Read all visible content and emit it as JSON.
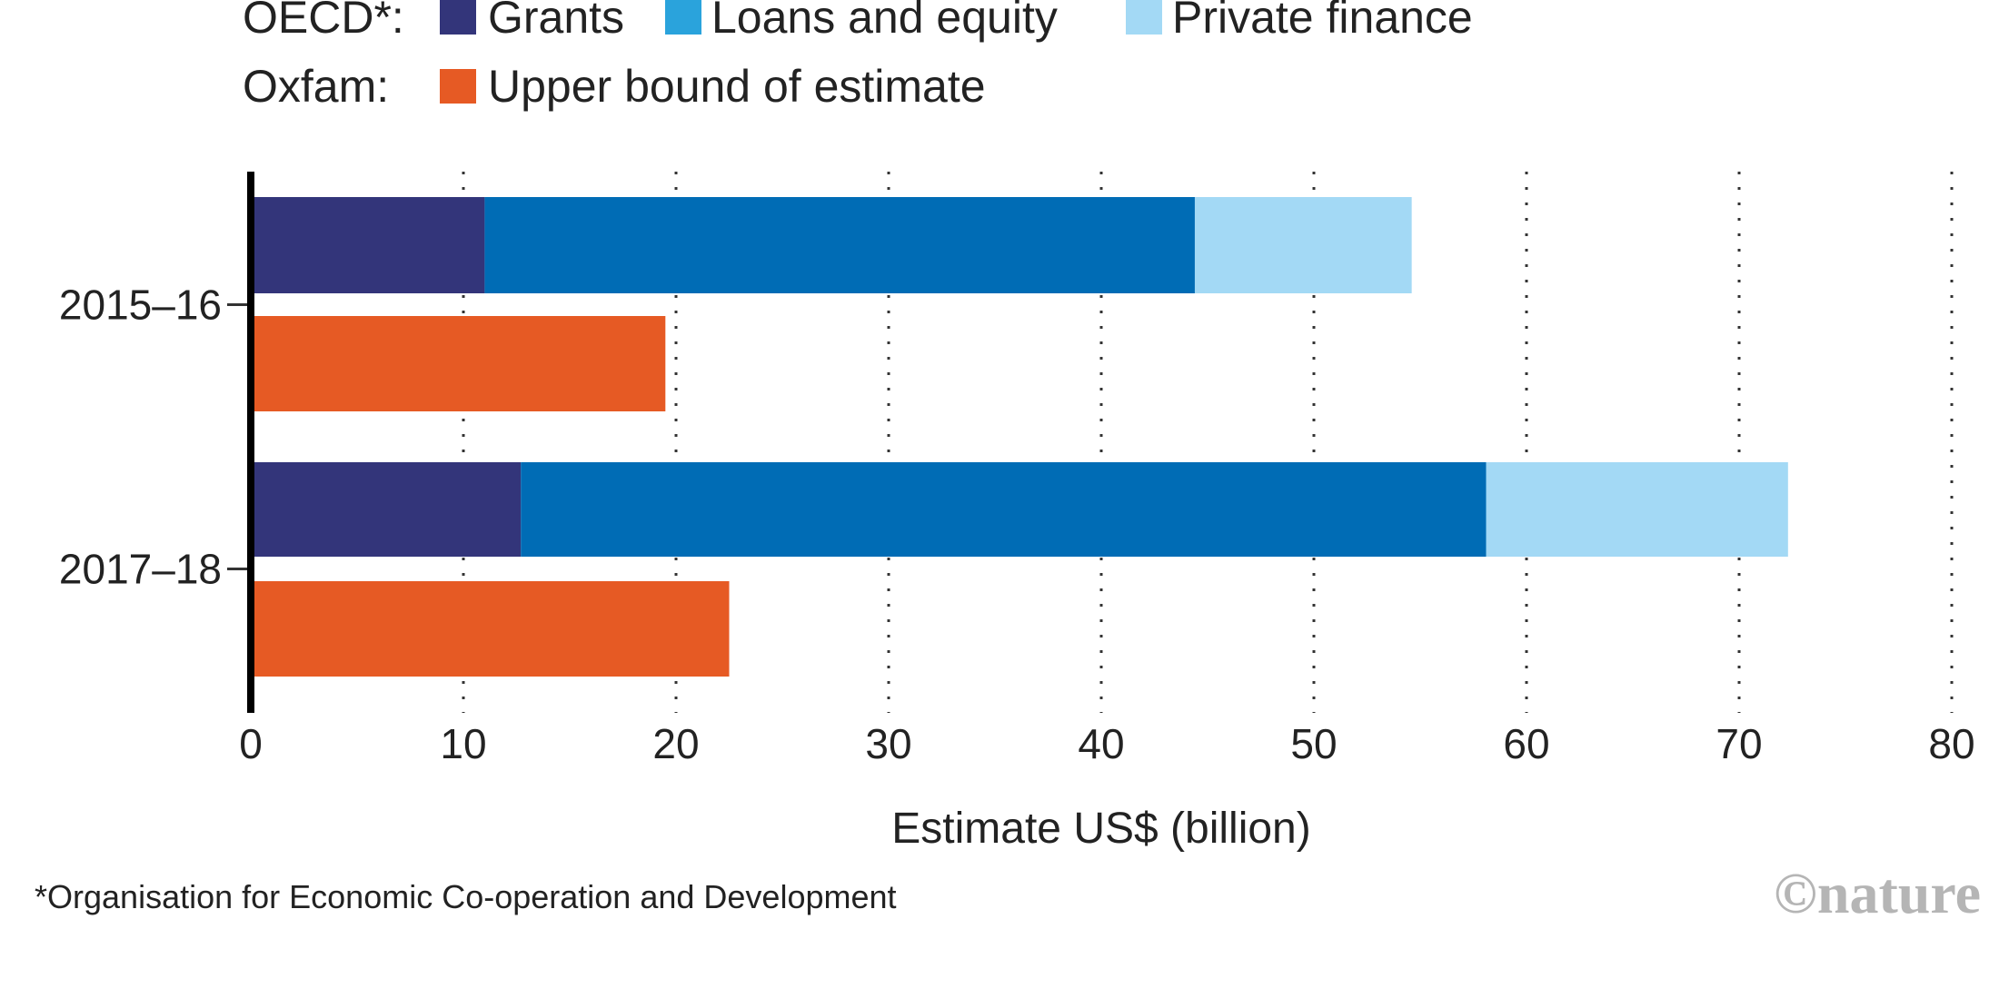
{
  "chart_data": {
    "type": "bar",
    "orientation": "horizontal",
    "stacked": true,
    "title": "",
    "xlabel": "Estimate US$ (billion)",
    "ylabel": "",
    "xlim": [
      0,
      80
    ],
    "xticks": [
      0,
      10,
      20,
      30,
      40,
      50,
      60,
      70,
      80
    ],
    "grid": "vertical dotted",
    "categories": [
      "2015–16",
      "2017–18"
    ],
    "groups": [
      {
        "name": "OECD",
        "legend_label": "OECD*:",
        "series": [
          {
            "name": "Grants",
            "values": [
              11.0,
              12.7
            ],
            "color": "#33357a",
            "legend_color": "#33357a"
          },
          {
            "name": "Loans and equity",
            "values": [
              33.4,
              45.4
            ],
            "color": "#006cb5",
            "legend_color": "#2aa3dc"
          },
          {
            "name": "Private finance",
            "values": [
              10.2,
              14.2
            ],
            "color": "#a3d9f5",
            "legend_color": "#a3d9f5"
          }
        ]
      },
      {
        "name": "Oxfam",
        "legend_label": "Oxfam:",
        "series": [
          {
            "name": "Upper bound of estimate",
            "values": [
              19.5,
              22.5
            ],
            "color": "#e65a24",
            "legend_color": "#e65a24"
          }
        ]
      }
    ],
    "legend_position": "top-left",
    "footnote": "*Organisation for Economic Co-operation and Development",
    "credit": "©nature"
  }
}
